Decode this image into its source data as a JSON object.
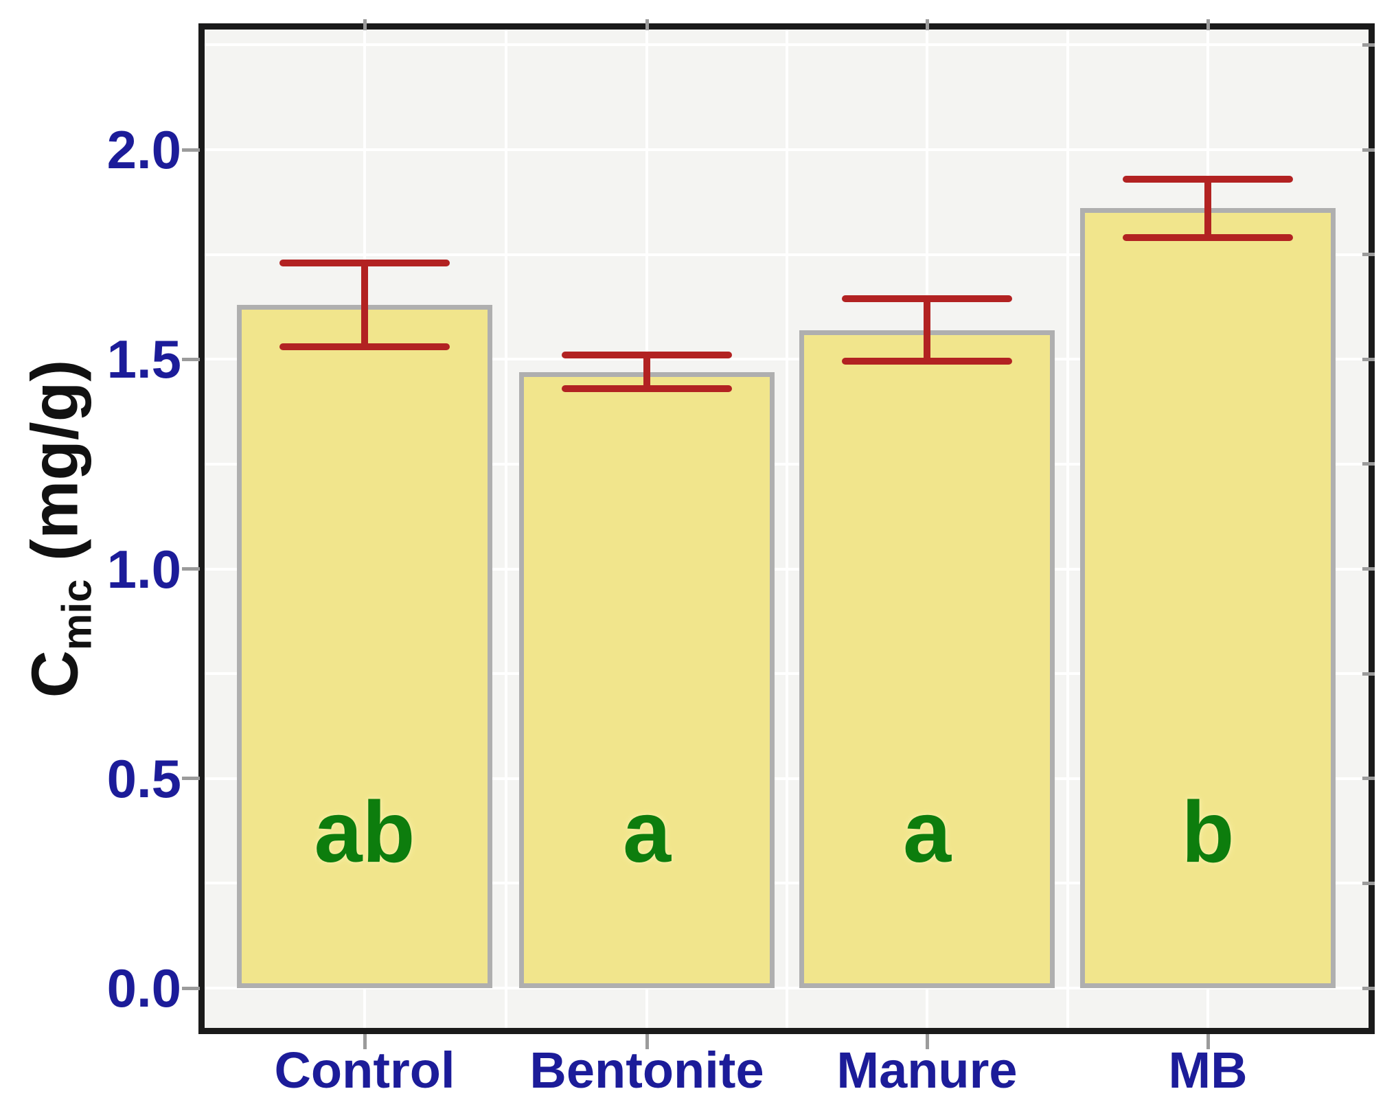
{
  "chart_data": {
    "type": "bar",
    "title": "",
    "xlabel": "",
    "ylabel": "C_mic (mg/g)",
    "ylabel_parts": {
      "main": "C",
      "sub": "mic",
      "rest": " (mg/g)"
    },
    "categories": [
      "Control",
      "Bentonite",
      "Manure",
      "MB"
    ],
    "values": [
      1.63,
      1.47,
      1.57,
      1.86
    ],
    "errors": [
      0.1,
      0.04,
      0.075,
      0.07
    ],
    "significance_letters": [
      "ab",
      "a",
      "a",
      "b"
    ],
    "yticks": [
      0,
      0.5,
      1.0,
      1.5,
      2.0
    ],
    "ytick_labels": [
      "0.0",
      "0.5",
      "1.0",
      "1.5",
      "2.0"
    ],
    "ylim": [
      -0.11,
      2.3
    ],
    "grid": {
      "horizontal_step": 0.25,
      "vertical": "category centers and midpoints",
      "color": "#ffffff"
    },
    "legend": "none",
    "colors": {
      "bar_fill": "#f1e58c",
      "bar_border": "#afafaf",
      "error_bar": "#b22222",
      "tick_label": "#1c1c99",
      "category_label": "#1c1c99",
      "sig_letter": "#0d7d0d",
      "axis_frame": "#1a1a1a",
      "plot_background": "#f4f4f2",
      "figure_background": "#ffffff",
      "tick_mark": "#9b9b9b"
    }
  }
}
